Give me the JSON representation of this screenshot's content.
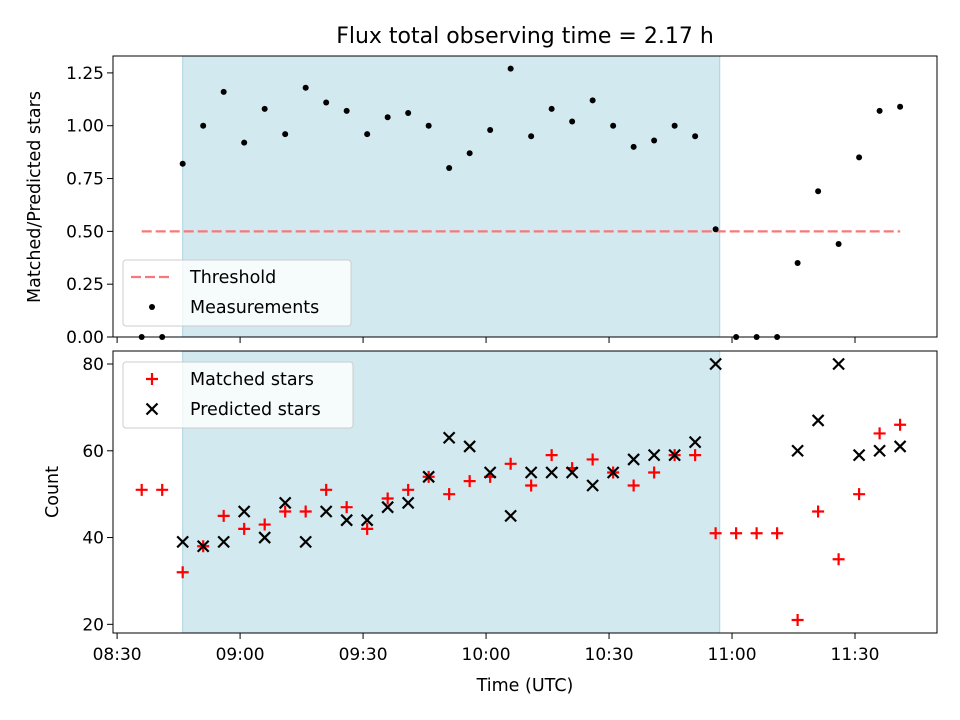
{
  "chart_data": [
    {
      "type": "scatter",
      "title": "Flux total observing time = 2.17 h",
      "ylabel": "Matched/Predicted stars",
      "xlabel": "",
      "xlim": [
        "08:29",
        "11:50"
      ],
      "ylim": [
        0,
        1.33
      ],
      "yticks": [
        0.0,
        0.25,
        0.5,
        0.75,
        1.0,
        1.25
      ],
      "ytick_labels": [
        "0.00",
        "0.25",
        "0.50",
        "0.75",
        "1.00",
        "1.25"
      ],
      "shaded_region": {
        "x_start": "08:46",
        "x_end": "10:57",
        "color": "#d3e9f0"
      },
      "legend_position": "lower-left",
      "grid": false,
      "series": [
        {
          "name": "Threshold",
          "kind": "dashed-line",
          "color": "#f87878",
          "x": [
            "08:36",
            "11:41"
          ],
          "values": [
            0.5,
            0.5
          ]
        },
        {
          "name": "Measurements",
          "kind": "dot",
          "color": "#000000",
          "x": [
            "08:36",
            "08:41",
            "08:46",
            "08:51",
            "08:56",
            "09:01",
            "09:06",
            "09:11",
            "09:16",
            "09:21",
            "09:26",
            "09:31",
            "09:36",
            "09:41",
            "09:46",
            "09:51",
            "09:56",
            "10:01",
            "10:06",
            "10:11",
            "10:16",
            "10:21",
            "10:26",
            "10:31",
            "10:36",
            "10:41",
            "10:46",
            "10:51",
            "10:56",
            "11:01",
            "11:06",
            "11:11",
            "11:16",
            "11:21",
            "11:26",
            "11:31",
            "11:36",
            "11:41"
          ],
          "values": [
            0.0,
            0.0,
            0.82,
            1.0,
            1.16,
            0.92,
            1.08,
            0.96,
            1.18,
            1.11,
            1.07,
            0.96,
            1.04,
            1.06,
            1.0,
            0.8,
            0.87,
            0.98,
            1.27,
            0.95,
            1.08,
            1.02,
            1.12,
            1.0,
            0.9,
            0.93,
            1.0,
            0.95,
            0.51,
            0.0,
            0.0,
            0.0,
            0.35,
            0.69,
            0.44,
            0.85,
            1.07,
            1.09
          ]
        }
      ]
    },
    {
      "type": "scatter",
      "title": "",
      "ylabel": "Count",
      "xlabel": "Time (UTC)",
      "xlim": [
        "08:29",
        "11:50"
      ],
      "ylim": [
        18,
        83
      ],
      "yticks": [
        20,
        40,
        60,
        80
      ],
      "ytick_labels": [
        "20",
        "40",
        "60",
        "80"
      ],
      "xticks": [
        "08:30",
        "09:00",
        "09:30",
        "10:00",
        "10:30",
        "11:00",
        "11:30"
      ],
      "xtick_labels": [
        "08:30",
        "09:00",
        "09:30",
        "10:00",
        "10:30",
        "11:00",
        "11:30"
      ],
      "shaded_region": {
        "x_start": "08:46",
        "x_end": "10:57",
        "color": "#d3e9f0"
      },
      "legend_position": "upper-left",
      "grid": false,
      "series": [
        {
          "name": "Matched stars",
          "kind": "plus",
          "color": "#ff0000",
          "x": [
            "08:36",
            "08:41",
            "08:46",
            "08:51",
            "08:56",
            "09:01",
            "09:06",
            "09:11",
            "09:16",
            "09:21",
            "09:26",
            "09:31",
            "09:36",
            "09:41",
            "09:46",
            "09:51",
            "09:56",
            "10:01",
            "10:06",
            "10:11",
            "10:16",
            "10:21",
            "10:26",
            "10:31",
            "10:36",
            "10:41",
            "10:46",
            "10:51",
            "10:56",
            "11:01",
            "11:06",
            "11:11",
            "11:16",
            "11:21",
            "11:26",
            "11:31",
            "11:36",
            "11:41"
          ],
          "values": [
            51,
            51,
            32,
            38,
            45,
            42,
            43,
            46,
            46,
            51,
            47,
            42,
            49,
            51,
            54,
            50,
            53,
            54,
            57,
            52,
            59,
            56,
            58,
            55,
            52,
            55,
            59,
            59,
            41,
            41,
            41,
            41,
            21,
            46,
            35,
            50,
            64,
            66
          ]
        },
        {
          "name": "Predicted stars",
          "kind": "x",
          "color": "#000000",
          "x": [
            "08:46",
            "08:51",
            "08:56",
            "09:01",
            "09:06",
            "09:11",
            "09:16",
            "09:21",
            "09:26",
            "09:31",
            "09:36",
            "09:41",
            "09:46",
            "09:51",
            "09:56",
            "10:01",
            "10:06",
            "10:11",
            "10:16",
            "10:21",
            "10:26",
            "10:31",
            "10:36",
            "10:41",
            "10:46",
            "10:51",
            "10:56",
            "11:16",
            "11:21",
            "11:26",
            "11:31",
            "11:36",
            "11:41"
          ],
          "values": [
            39,
            38,
            39,
            46,
            40,
            48,
            39,
            46,
            44,
            44,
            47,
            48,
            54,
            63,
            61,
            55,
            45,
            55,
            55,
            55,
            52,
            55,
            58,
            59,
            59,
            62,
            80,
            60,
            67,
            80,
            59,
            60,
            61
          ]
        }
      ]
    }
  ]
}
